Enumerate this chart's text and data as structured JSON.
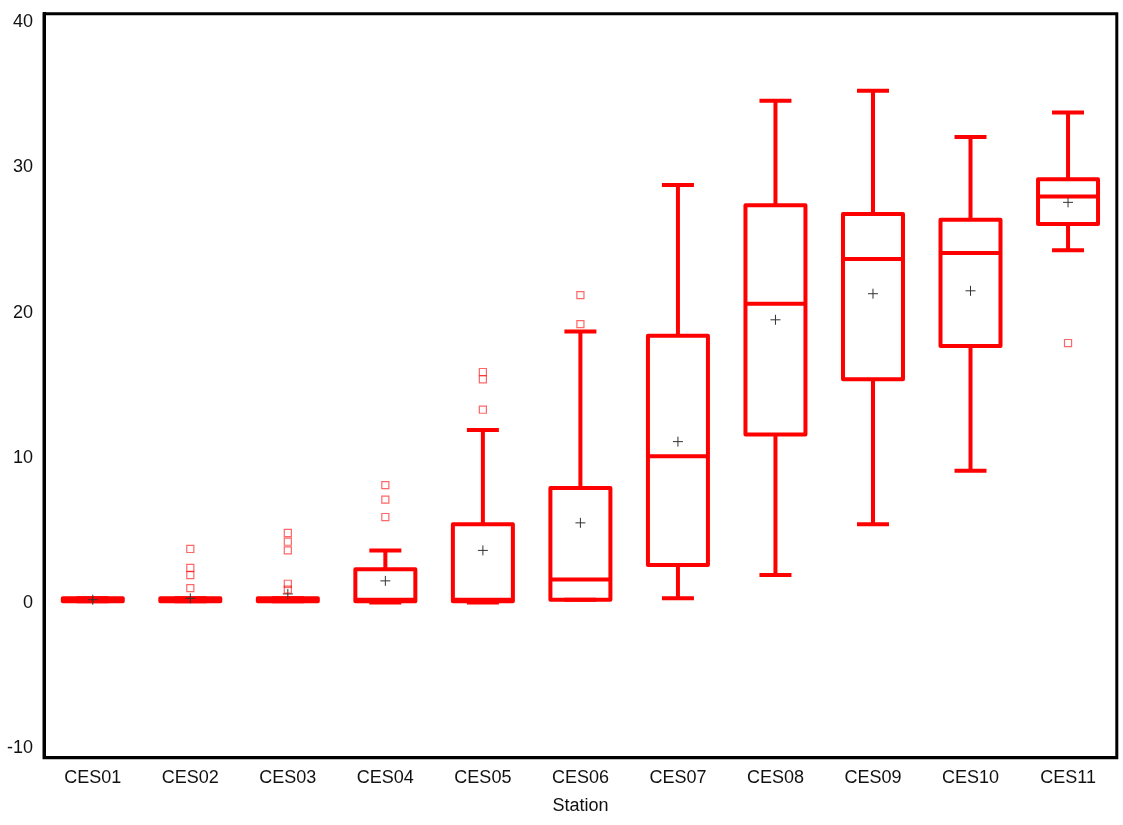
{
  "chart_data": {
    "type": "box",
    "xlabel": "Station",
    "categories": [
      "CES01",
      "CES02",
      "CES03",
      "CES04",
      "CES05",
      "CES06",
      "CES07",
      "CES08",
      "CES09",
      "CES10",
      "CES11"
    ],
    "series": [
      {
        "color": "#ff0000",
        "boxes": [
          {
            "low": 0.1,
            "q1": 0.1,
            "median": 0.2,
            "q3": 0.3,
            "high": 0.3,
            "mean": 0.2
          },
          {
            "low": 0.1,
            "q1": 0.1,
            "median": 0.2,
            "q3": 0.3,
            "high": 0.3,
            "mean": 0.3,
            "outliers": [
              1.0,
              1.9,
              2.4,
              3.7
            ]
          },
          {
            "low": 0.1,
            "q1": 0.1,
            "median": 0.2,
            "q3": 0.3,
            "high": 0.3,
            "mean": 0.6,
            "outliers": [
              0.9,
              1.3,
              3.6,
              4.2,
              4.8
            ]
          },
          {
            "low": 0,
            "q1": 0.1,
            "median": 0.2,
            "q3": 2.3,
            "high": 3.6,
            "mean": 1.5,
            "outliers": [
              5.9,
              7.1,
              8.1
            ]
          },
          {
            "low": 0,
            "q1": 0.1,
            "median": 0.2,
            "q3": 5.4,
            "high": 11.9,
            "mean": 3.6,
            "outliers": [
              13.3,
              15.4,
              15.9
            ]
          },
          {
            "low": 0.2,
            "q1": 0.2,
            "median": 1.6,
            "q3": 7.9,
            "high": 18.7,
            "mean": 5.5,
            "outliers": [
              19.2,
              21.2
            ]
          },
          {
            "low": 0.3,
            "q1": 2.6,
            "median": 10.1,
            "q3": 18.4,
            "high": 28.8,
            "mean": 11.1
          },
          {
            "low": 1.9,
            "q1": 11.6,
            "median": 20.6,
            "q3": 27.4,
            "high": 34.6,
            "mean": 19.5
          },
          {
            "low": 5.4,
            "q1": 15.4,
            "median": 23.7,
            "q3": 26.8,
            "high": 35.3,
            "mean": 21.3
          },
          {
            "low": 9.1,
            "q1": 17.7,
            "median": 24.1,
            "q3": 26.4,
            "high": 32.1,
            "mean": 21.5
          },
          {
            "low": 24.3,
            "q1": 26.1,
            "median": 28.0,
            "q3": 29.2,
            "high": 33.8,
            "mean": 27.6,
            "outliers": [
              17.9
            ]
          }
        ]
      }
    ],
    "ylim": [
      -10.7,
      40.6
    ],
    "yticks": [
      -10,
      0,
      10,
      20,
      30,
      40
    ],
    "grid": false,
    "legend": false,
    "marker": "square"
  }
}
